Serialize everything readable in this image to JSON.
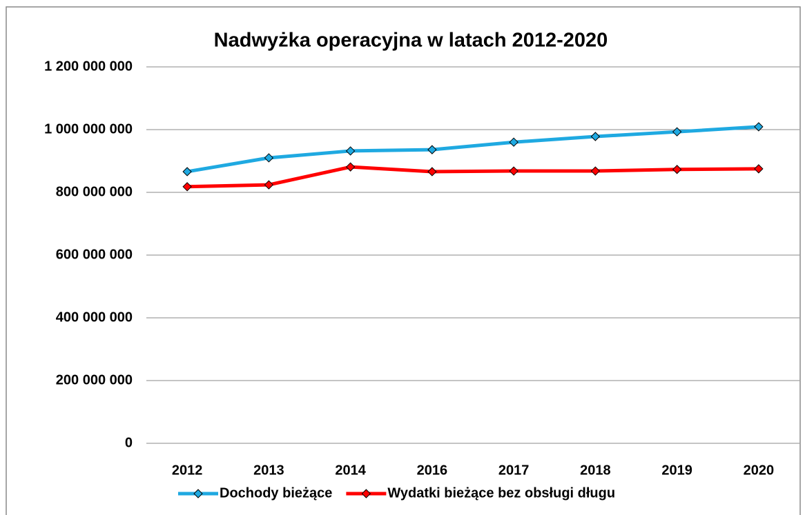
{
  "chart_data": {
    "type": "line",
    "title": "Nadwyżka operacyjna w latach 2012-2020",
    "categories": [
      "2012",
      "2013",
      "2014",
      "2016",
      "2017",
      "2018",
      "2019",
      "2020"
    ],
    "series": [
      {
        "name": "Dochody bieżące",
        "color": "#1fa9e1",
        "values": [
          866000000,
          910000000,
          932000000,
          936000000,
          960000000,
          978000000,
          993000000,
          1009000000
        ]
      },
      {
        "name": "Wydatki bieżące bez obsługi długu",
        "color": "#ff0000",
        "values": [
          818000000,
          824000000,
          881000000,
          866000000,
          868000000,
          868000000,
          873000000,
          875000000
        ]
      }
    ],
    "ylim": [
      0,
      1200000000
    ],
    "yticks": [
      0,
      {
        "value": 200000000,
        "label": "200 000 000"
      },
      {
        "value": 400000000,
        "label": "400 000 000"
      },
      {
        "value": 600000000,
        "label": "600 000 000"
      },
      {
        "value": 800000000,
        "label": "800 000 000"
      },
      {
        "value": 1000000000,
        "label": "1 000 000 000"
      },
      {
        "value": 1200000000,
        "label": "1 200 000 000"
      }
    ],
    "grid": true,
    "legend": "bottom"
  }
}
